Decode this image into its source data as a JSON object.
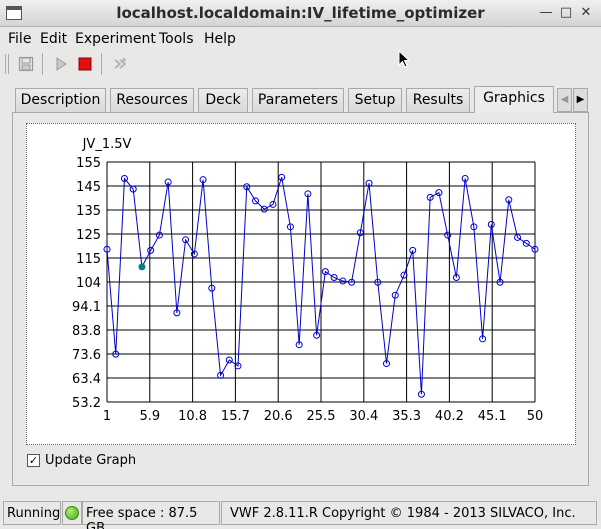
{
  "window": {
    "title": "localhost.localdomain:IV_lifetime_optimizer"
  },
  "menu": [
    "File",
    "Edit",
    "Experiment",
    "Tools",
    "Help"
  ],
  "tabs": [
    "Description",
    "Resources",
    "Deck",
    "Parameters",
    "Setup",
    "Results",
    "Graphics"
  ],
  "active_tab": "Graphics",
  "update_graph": {
    "label": "Update Graph",
    "checked": true,
    "mark": "✓"
  },
  "status": {
    "state": "Running",
    "free_space": "Free space : 87.5 GB",
    "copyright": "VWF 2.8.11.R Copyright © 1984 - 2013 SILVACO, Inc."
  },
  "colors": {
    "line": "#0000cc",
    "marker": "#0000cc",
    "highlight": "#008080",
    "grid": "#000000"
  },
  "chart_data": {
    "type": "line",
    "title": "JV_1.5V",
    "xlabel": "",
    "ylabel": "",
    "grid": true,
    "xlim": [
      1,
      50
    ],
    "ylim": [
      53.2,
      155
    ],
    "xticks": [
      "1",
      "5.9",
      "10.8",
      "15.7",
      "20.6",
      "25.5",
      "30.4",
      "35.3",
      "40.2",
      "45.1",
      "50"
    ],
    "yticks": [
      "53.2",
      "63.4",
      "73.6",
      "83.8",
      "94.1",
      "104",
      "115",
      "125",
      "135",
      "145",
      "155"
    ],
    "x": [
      1,
      2,
      3,
      4,
      5,
      6,
      7,
      8,
      9,
      10,
      11,
      12,
      13,
      14,
      15,
      16,
      17,
      18,
      19,
      20,
      21,
      22,
      23,
      24,
      25,
      26,
      27,
      28,
      29,
      30,
      31,
      32,
      33,
      34,
      35,
      36,
      37,
      38,
      39,
      40,
      41,
      42,
      43,
      44,
      45,
      46,
      47,
      48,
      49,
      50
    ],
    "series": [
      {
        "values": [
          118,
          73.5,
          148,
          143.5,
          110.5,
          117.5,
          124,
          146.5,
          91,
          122,
          116,
          147.5,
          101.5,
          64.5,
          71,
          68.5,
          144.5,
          138.5,
          135,
          137,
          148.5,
          127.5,
          77.5,
          141.5,
          81.5,
          108.5,
          106,
          104.5,
          104,
          125,
          146,
          104,
          69.5,
          98.5,
          107,
          117.5,
          56.5,
          140,
          142,
          124,
          106,
          148,
          127.5,
          80,
          128.5,
          104,
          139,
          123,
          120.5,
          118
        ]
      }
    ],
    "highlight_index": 4
  }
}
